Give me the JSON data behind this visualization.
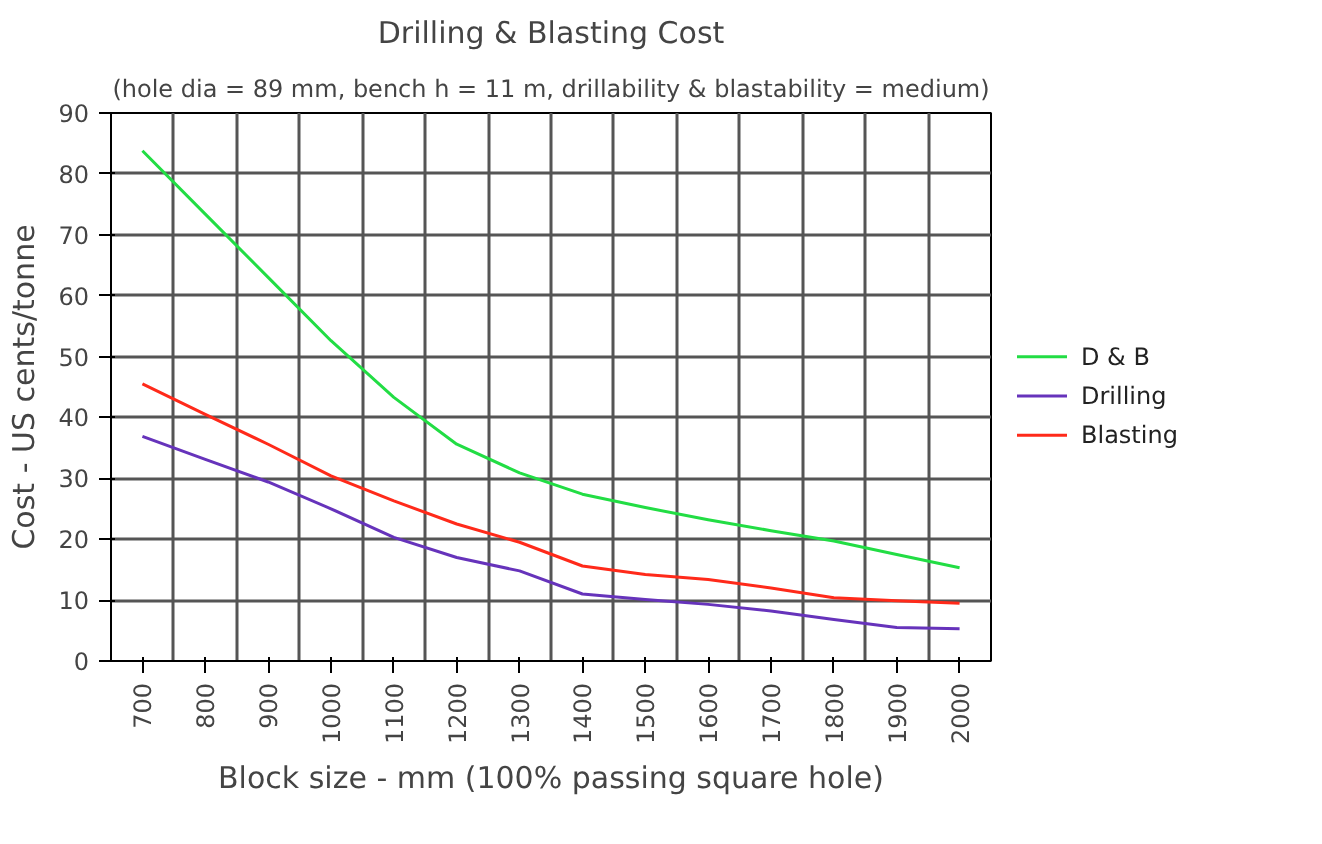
{
  "chart_data": {
    "type": "line",
    "title": "Drilling & Blasting Cost",
    "subtitle": "(hole dia = 89 mm, bench h = 11 m, drillability & blastability = medium)",
    "xlabel": "Block size - mm (100% passing square hole)",
    "ylabel": "Cost - US cents/tonne",
    "categories": [
      "700",
      "800",
      "900",
      "1000",
      "1100",
      "1200",
      "1300",
      "1400",
      "1500",
      "1600",
      "1700",
      "1800",
      "1900",
      "2000"
    ],
    "series": [
      {
        "name": "D & B",
        "color": "#22dd44",
        "values": [
          83.8,
          73.4,
          63,
          52.6,
          43.3,
          35.6,
          30.9,
          27.4,
          25.2,
          23.2,
          21.4,
          19.7,
          17.5,
          15.3
        ]
      },
      {
        "name": "Drilling",
        "color": "#6633bb",
        "values": [
          36.9,
          33.1,
          29.4,
          25.0,
          20.3,
          17.0,
          14.8,
          11.0,
          10.1,
          9.3,
          8.2,
          6.8,
          5.5,
          5.3
        ]
      },
      {
        "name": "Blasting",
        "color": "#ff2a1a",
        "values": [
          45.5,
          40.5,
          35.6,
          30.4,
          26.3,
          22.5,
          19.5,
          15.6,
          14.2,
          13.4,
          12.0,
          10.4,
          9.9,
          9.5
        ]
      }
    ],
    "ylim": [
      0,
      90
    ],
    "yticks": [
      0,
      10,
      20,
      30,
      40,
      50,
      60,
      70,
      80,
      90
    ],
    "grid": true,
    "legend": "right",
    "marker": "none",
    "line_style": "solid"
  }
}
